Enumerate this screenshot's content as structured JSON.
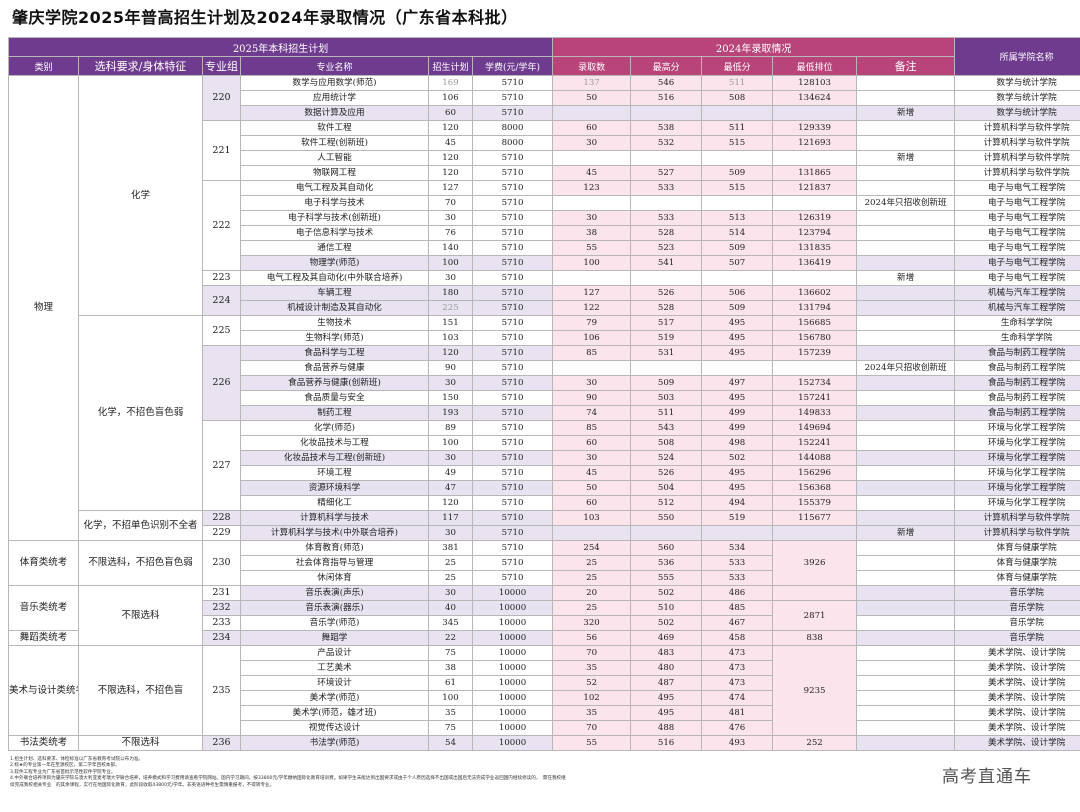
{
  "title": "肇庆学院2025年普高招生计划及2024年录取情况（广东省本科批）",
  "header": {
    "plan_2025": "2025年本科招生计划",
    "result_2024": "2024年录取情况",
    "college": "所属学院名称",
    "cols": {
      "category": "类别",
      "requirement": "选科要求/身体特征",
      "group": "专业组",
      "major": "专业名称",
      "plan": "招生计划",
      "tuition": "学费(元/学年)",
      "admitted": "录取数",
      "max": "最高分",
      "min": "最低分",
      "rank": "最低排位",
      "remark": "备注"
    }
  },
  "groups": [
    {
      "category": "物理",
      "requirement": "化学",
      "requirement2": "化学，不招色盲色弱",
      "requirement3": "化学，不招单色识别不全者"
    },
    {
      "category": "体育类统考",
      "requirement": "不限选科，不招色盲色弱"
    },
    {
      "category": "音乐类统考",
      "requirement": "不限选科"
    },
    {
      "category": "舞蹈类统考"
    },
    {
      "category": "美术与设计类统考",
      "requirement": "不限选科，不招色盲"
    },
    {
      "category": "书法类统考",
      "requirement": "不限选科"
    }
  ],
  "rows": [
    {
      "group": "220",
      "major": "数学与应用数学(师范)",
      "plan": "169",
      "tuition": "5710",
      "admitted": "137",
      "max": "546",
      "min": "511",
      "rank": "128103",
      "remark": "",
      "college": "数学与统计学院"
    },
    {
      "group": "",
      "major": "应用统计学",
      "plan": "106",
      "tuition": "5710",
      "admitted": "50",
      "max": "516",
      "min": "508",
      "rank": "134624",
      "remark": "",
      "college": "数学与统计学院"
    },
    {
      "group": "",
      "major": "数据计算及应用",
      "plan": "60",
      "tuition": "5710",
      "admitted": "",
      "max": "",
      "min": "",
      "rank": "",
      "remark": "新增",
      "college": "数学与统计学院"
    },
    {
      "group": "221",
      "major": "软件工程",
      "plan": "120",
      "tuition": "8000",
      "admitted": "60",
      "max": "538",
      "min": "511",
      "rank": "129339",
      "remark": "",
      "college": "计算机科学与软件学院"
    },
    {
      "group": "",
      "major": "软件工程(创新班)",
      "plan": "45",
      "tuition": "8000",
      "admitted": "30",
      "max": "532",
      "min": "515",
      "rank": "121693",
      "remark": "",
      "college": "计算机科学与软件学院"
    },
    {
      "group": "",
      "major": "人工智能",
      "plan": "120",
      "tuition": "5710",
      "admitted": "",
      "max": "",
      "min": "",
      "rank": "",
      "remark": "新增",
      "college": "计算机科学与软件学院"
    },
    {
      "group": "",
      "major": "物联网工程",
      "plan": "120",
      "tuition": "5710",
      "admitted": "45",
      "max": "527",
      "min": "509",
      "rank": "131865",
      "remark": "",
      "college": "计算机科学与软件学院"
    },
    {
      "group": "222",
      "major": "电气工程及其自动化",
      "plan": "127",
      "tuition": "5710",
      "admitted": "123",
      "max": "533",
      "min": "515",
      "rank": "121837",
      "remark": "",
      "college": "电子与电气工程学院"
    },
    {
      "group": "",
      "major": "电子科学与技术",
      "plan": "70",
      "tuition": "5710",
      "admitted": "",
      "max": "",
      "min": "",
      "rank": "",
      "remark": "2024年只招收创新班",
      "college": "电子与电气工程学院"
    },
    {
      "group": "",
      "major": "电子科学与技术(创新班)",
      "plan": "30",
      "tuition": "5710",
      "admitted": "30",
      "max": "533",
      "min": "513",
      "rank": "126319",
      "remark": "",
      "college": "电子与电气工程学院"
    },
    {
      "group": "",
      "major": "电子信息科学与技术",
      "plan": "76",
      "tuition": "5710",
      "admitted": "38",
      "max": "528",
      "min": "514",
      "rank": "123794",
      "remark": "",
      "college": "电子与电气工程学院"
    },
    {
      "group": "",
      "major": "通信工程",
      "plan": "140",
      "tuition": "5710",
      "admitted": "55",
      "max": "523",
      "min": "509",
      "rank": "131835",
      "remark": "",
      "college": "电子与电气工程学院"
    },
    {
      "group": "",
      "major": "物理学(师范)",
      "plan": "100",
      "tuition": "5710",
      "admitted": "100",
      "max": "541",
      "min": "507",
      "rank": "136419",
      "remark": "",
      "college": "电子与电气工程学院"
    },
    {
      "group": "223",
      "major": "电气工程及其自动化(中外联合培养)",
      "plan": "30",
      "tuition": "5710",
      "admitted": "",
      "max": "",
      "min": "",
      "rank": "",
      "remark": "新增",
      "college": "电子与电气工程学院"
    },
    {
      "group": "224",
      "major": "车辆工程",
      "plan": "180",
      "tuition": "5710",
      "admitted": "127",
      "max": "526",
      "min": "506",
      "rank": "136602",
      "remark": "",
      "college": "机械与汽车工程学院"
    },
    {
      "group": "",
      "major": "机械设计制造及其自动化",
      "plan": "225",
      "tuition": "5710",
      "admitted": "122",
      "max": "528",
      "min": "509",
      "rank": "131794",
      "remark": "",
      "college": "机械与汽车工程学院"
    },
    {
      "group": "225",
      "major": "生物技术",
      "plan": "151",
      "tuition": "5710",
      "admitted": "79",
      "max": "517",
      "min": "495",
      "rank": "156685",
      "remark": "",
      "college": "生命科学学院"
    },
    {
      "group": "",
      "major": "生物科学(师范)",
      "plan": "103",
      "tuition": "5710",
      "admitted": "106",
      "max": "519",
      "min": "495",
      "rank": "156780",
      "remark": "",
      "college": "生命科学学院"
    },
    {
      "group": "226",
      "major": "食品科学与工程",
      "plan": "120",
      "tuition": "5710",
      "admitted": "85",
      "max": "531",
      "min": "495",
      "rank": "157239",
      "remark": "",
      "college": "食品与制药工程学院"
    },
    {
      "group": "",
      "major": "食品营养与健康",
      "plan": "90",
      "tuition": "5710",
      "admitted": "",
      "max": "",
      "min": "",
      "rank": "",
      "remark": "2024年只招收创新班",
      "college": "食品与制药工程学院"
    },
    {
      "group": "",
      "major": "食品营养与健康(创新班)",
      "plan": "30",
      "tuition": "5710",
      "admitted": "30",
      "max": "509",
      "min": "497",
      "rank": "152734",
      "remark": "",
      "college": "食品与制药工程学院"
    },
    {
      "group": "",
      "major": "食品质量与安全",
      "plan": "150",
      "tuition": "5710",
      "admitted": "90",
      "max": "503",
      "min": "495",
      "rank": "157241",
      "remark": "",
      "college": "食品与制药工程学院"
    },
    {
      "group": "",
      "major": "制药工程",
      "plan": "193",
      "tuition": "5710",
      "admitted": "74",
      "max": "511",
      "min": "499",
      "rank": "149833",
      "remark": "",
      "college": "食品与制药工程学院"
    },
    {
      "group": "227",
      "major": "化学(师范)",
      "plan": "89",
      "tuition": "5710",
      "admitted": "85",
      "max": "543",
      "min": "499",
      "rank": "149694",
      "remark": "",
      "college": "环境与化学工程学院"
    },
    {
      "group": "",
      "major": "化妆品技术与工程",
      "plan": "100",
      "tuition": "5710",
      "admitted": "60",
      "max": "508",
      "min": "498",
      "rank": "152241",
      "remark": "",
      "college": "环境与化学工程学院"
    },
    {
      "group": "",
      "major": "化妆品技术与工程(创新班)",
      "plan": "30",
      "tuition": "5710",
      "admitted": "30",
      "max": "524",
      "min": "502",
      "rank": "144088",
      "remark": "",
      "college": "环境与化学工程学院"
    },
    {
      "group": "",
      "major": "环境工程",
      "plan": "49",
      "tuition": "5710",
      "admitted": "45",
      "max": "526",
      "min": "495",
      "rank": "156296",
      "remark": "",
      "college": "环境与化学工程学院"
    },
    {
      "group": "",
      "major": "资源环境科学",
      "plan": "47",
      "tuition": "5710",
      "admitted": "50",
      "max": "504",
      "min": "495",
      "rank": "156368",
      "remark": "",
      "college": "环境与化学工程学院"
    },
    {
      "group": "",
      "major": "精细化工",
      "plan": "120",
      "tuition": "5710",
      "admitted": "60",
      "max": "512",
      "min": "494",
      "rank": "155379",
      "remark": "",
      "college": "环境与化学工程学院"
    },
    {
      "group": "228",
      "major": "计算机科学与技术",
      "plan": "117",
      "tuition": "5710",
      "admitted": "103",
      "max": "550",
      "min": "519",
      "rank": "115677",
      "remark": "",
      "college": "计算机科学与软件学院"
    },
    {
      "group": "229",
      "major": "计算机科学与技术(中外联合培养)",
      "plan": "30",
      "tuition": "5710",
      "admitted": "",
      "max": "",
      "min": "",
      "rank": "",
      "remark": "新增",
      "college": "计算机科学与软件学院"
    },
    {
      "group": "230",
      "major": "体育教育(师范)",
      "plan": "381",
      "tuition": "5710",
      "admitted": "254",
      "max": "560",
      "min": "534",
      "rank": "3926",
      "remark": "",
      "college": "体育与健康学院"
    },
    {
      "group": "",
      "major": "社会体育指导与管理",
      "plan": "25",
      "tuition": "5710",
      "admitted": "25",
      "max": "536",
      "min": "533",
      "rank": "",
      "remark": "",
      "college": "体育与健康学院"
    },
    {
      "group": "",
      "major": "休闲体育",
      "plan": "25",
      "tuition": "5710",
      "admitted": "25",
      "max": "555",
      "min": "533",
      "rank": "",
      "remark": "",
      "college": "体育与健康学院"
    },
    {
      "group": "231",
      "major": "音乐表演(声乐)",
      "plan": "30",
      "tuition": "10000",
      "admitted": "20",
      "max": "502",
      "min": "486",
      "rank": "",
      "remark": "",
      "college": "音乐学院"
    },
    {
      "group": "232",
      "major": "音乐表演(器乐)",
      "plan": "40",
      "tuition": "10000",
      "admitted": "25",
      "max": "510",
      "min": "485",
      "rank": "2871",
      "remark": "",
      "college": "音乐学院"
    },
    {
      "group": "233",
      "major": "音乐学(师范)",
      "plan": "345",
      "tuition": "10000",
      "admitted": "320",
      "max": "502",
      "min": "467",
      "rank": "",
      "remark": "",
      "college": "音乐学院"
    },
    {
      "group": "234",
      "major": "舞蹈学",
      "plan": "22",
      "tuition": "10000",
      "admitted": "56",
      "max": "469",
      "min": "458",
      "rank": "838",
      "remark": "",
      "college": "音乐学院"
    },
    {
      "group": "235",
      "major": "产品设计",
      "plan": "75",
      "tuition": "10000",
      "admitted": "70",
      "max": "483",
      "min": "473",
      "rank": "9235",
      "remark": "",
      "college": "美术学院、设计学院"
    },
    {
      "group": "",
      "major": "工艺美术",
      "plan": "38",
      "tuition": "10000",
      "admitted": "35",
      "max": "480",
      "min": "473",
      "rank": "",
      "remark": "",
      "college": "美术学院、设计学院"
    },
    {
      "group": "",
      "major": "环境设计",
      "plan": "61",
      "tuition": "10000",
      "admitted": "52",
      "max": "487",
      "min": "473",
      "rank": "",
      "remark": "",
      "college": "美术学院、设计学院"
    },
    {
      "group": "",
      "major": "美术学(师范)",
      "plan": "100",
      "tuition": "10000",
      "admitted": "102",
      "max": "495",
      "min": "474",
      "rank": "",
      "remark": "",
      "college": "美术学院、设计学院"
    },
    {
      "group": "",
      "major": "美术学(师范，雄才班)",
      "plan": "35",
      "tuition": "10000",
      "admitted": "35",
      "max": "495",
      "min": "481",
      "rank": "",
      "remark": "",
      "college": "美术学院、设计学院"
    },
    {
      "group": "",
      "major": "视觉传达设计",
      "plan": "75",
      "tuition": "10000",
      "admitted": "70",
      "max": "488",
      "min": "476",
      "rank": "",
      "remark": "",
      "college": "美术学院、设计学院"
    },
    {
      "group": "236",
      "major": "书法学(师范)",
      "plan": "54",
      "tuition": "10000",
      "admitted": "55",
      "max": "516",
      "min": "493",
      "rank": "252",
      "remark": "",
      "college": "美术学院、设计学院"
    }
  ],
  "footnotes": [
    "1.招生计划、选科要求、体检标准以广东省教育考试院公布为准。",
    "2.标★的专业第一年在至源校区，第二学年回校本部。",
    "3.软件工程专业为广东省首批示范性软件学院专业。",
    "4.中外联合培养项目为肇庆学院与澳大利亚麦考瑞大学联合培养，培养模式和学习费用请查看学院网站。国内学习期间，按33800元/学年缴纳国际化教育培训费。如果学生未能达到出国要求或由于个人原因选择不出国或出国后无法完成学业返回国内继续修读的，　需在我校继续完成我校相关专业　的其余课程，实行在地国际化教育，此阶段收取43800元/学年。非英语语种考生需慎重报考，不得转专业。"
  ],
  "watermark": "高考直通车"
}
